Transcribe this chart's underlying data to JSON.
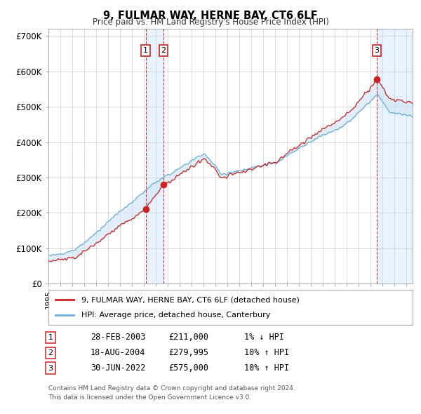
{
  "title": "9, FULMAR WAY, HERNE BAY, CT6 6LF",
  "subtitle": "Price paid vs. HM Land Registry's House Price Index (HPI)",
  "ylim": [
    0,
    720000
  ],
  "yticks": [
    0,
    100000,
    200000,
    300000,
    400000,
    500000,
    600000,
    700000
  ],
  "ytick_labels": [
    "£0",
    "£100K",
    "£200K",
    "£300K",
    "£400K",
    "£500K",
    "£600K",
    "£700K"
  ],
  "legend_line1": "9, FULMAR WAY, HERNE BAY, CT6 6LF (detached house)",
  "legend_line2": "HPI: Average price, detached house, Canterbury",
  "transactions": [
    {
      "num": 1,
      "date": "28-FEB-2003",
      "price": "£211,000",
      "hpi": "1% ↓ HPI",
      "x_year": 2003.15
    },
    {
      "num": 2,
      "date": "18-AUG-2004",
      "price": "£279,995",
      "hpi": "10% ↑ HPI",
      "x_year": 2004.63
    },
    {
      "num": 3,
      "date": "30-JUN-2022",
      "price": "£575,000",
      "hpi": "10% ↑ HPI",
      "x_year": 2022.5
    }
  ],
  "footer1": "Contains HM Land Registry data © Crown copyright and database right 2024.",
  "footer2": "This data is licensed under the Open Government Licence v3.0.",
  "bg_color": "#ffffff",
  "grid_color": "#cccccc",
  "hpi_line_color": "#6baed6",
  "price_line_color": "#cc2222",
  "shade_color": "#d0e4f5",
  "vline_color": "#cc2222",
  "xmin": 1995,
  "xmax": 2025.5
}
